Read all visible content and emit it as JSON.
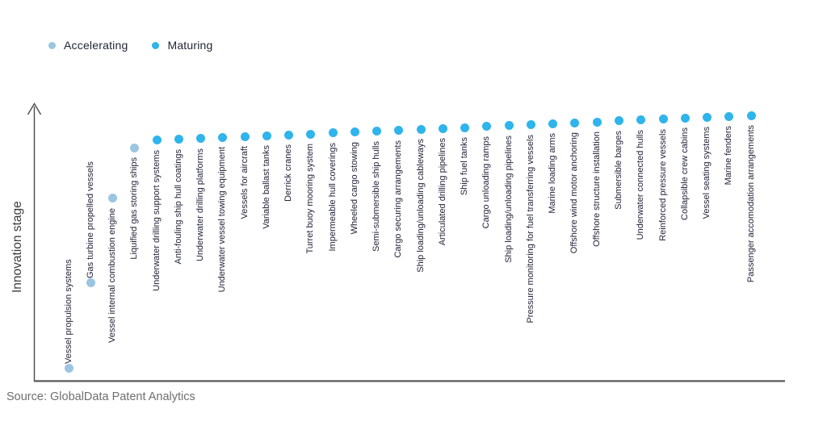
{
  "legend": {
    "items": [
      {
        "label": "Accelerating",
        "color": "#9CC5E1"
      },
      {
        "label": "Maturing",
        "color": "#2FB4EC"
      }
    ]
  },
  "axis": {
    "y_label": "Innovation stage"
  },
  "source": "Source: GlobalData Patent Analytics",
  "colors": {
    "accelerating": "#9CC5E1",
    "maturing": "#2FB4EC",
    "axis_line": "#4A4A4A",
    "baseline": "#5A5A5A",
    "label_text": "#23233A",
    "source_text": "#6F6F6F"
  },
  "chart_data": {
    "type": "scatter",
    "title": "",
    "xlabel": "",
    "ylabel": "Innovation stage",
    "ylim": [
      0,
      100
    ],
    "grid": false,
    "legend_position": "top-left",
    "series_names": [
      "Accelerating",
      "Maturing"
    ],
    "points": [
      {
        "label": "Vessel propulsion systems",
        "series": "Accelerating",
        "level": 4.7
      },
      {
        "label": "Gas turbine propelled vessels",
        "series": "Accelerating",
        "level": 35.6
      },
      {
        "label": "Vessel internal combustion engine",
        "series": "Accelerating",
        "level": 66.2
      },
      {
        "label": "Liquified gas storing ships",
        "series": "Accelerating",
        "level": 84.5
      },
      {
        "label": "Underwater drilling support systems",
        "series": "Maturing",
        "level": 87.2
      },
      {
        "label": "Anti-fouling ship hull coatings",
        "series": "Maturing",
        "level": 87.5
      },
      {
        "label": "Underwater drilling platforms",
        "series": "Maturing",
        "level": 87.8
      },
      {
        "label": "Underwater vessel towing equipment",
        "series": "Maturing",
        "level": 88.2
      },
      {
        "label": "Vessels for aircraft",
        "series": "Maturing",
        "level": 88.5
      },
      {
        "label": "Variable ballast tanks",
        "series": "Maturing",
        "level": 88.8
      },
      {
        "label": "Derrick cranes",
        "series": "Maturing",
        "level": 89.2
      },
      {
        "label": "Turret buoy mooring system",
        "series": "Maturing",
        "level": 89.5
      },
      {
        "label": "Impermeable hull coverings",
        "series": "Maturing",
        "level": 89.8
      },
      {
        "label": "Wheeled cargo stowing",
        "series": "Maturing",
        "level": 90.2
      },
      {
        "label": "Semi-submersible ship hulls",
        "series": "Maturing",
        "level": 90.5
      },
      {
        "label": "Cargo securing arrangements",
        "series": "Maturing",
        "level": 90.8
      },
      {
        "label": "Ship loading/unloading cableways",
        "series": "Maturing",
        "level": 91.2
      },
      {
        "label": "Articulated drilling pipelines",
        "series": "Maturing",
        "level": 91.5
      },
      {
        "label": "Ship fuel tanks",
        "series": "Maturing",
        "level": 91.8
      },
      {
        "label": "Cargo unloading ramps",
        "series": "Maturing",
        "level": 92.2
      },
      {
        "label": "Ship loading/unloading pipelines",
        "series": "Maturing",
        "level": 92.5
      },
      {
        "label": "Pressure monitoring for fuel transferring vessels",
        "series": "Maturing",
        "level": 92.8
      },
      {
        "label": "Marine loading arms",
        "series": "Maturing",
        "level": 93.2
      },
      {
        "label": "Offshore wind motor anchoring",
        "series": "Maturing",
        "level": 93.5
      },
      {
        "label": "Offshore structure installation",
        "series": "Maturing",
        "level": 93.8
      },
      {
        "label": "Submersible barges",
        "series": "Maturing",
        "level": 94.2
      },
      {
        "label": "Underwater connected hulls",
        "series": "Maturing",
        "level": 94.5
      },
      {
        "label": "Reinforced pressure vessels",
        "series": "Maturing",
        "level": 94.8
      },
      {
        "label": "Collapsible crew cabins",
        "series": "Maturing",
        "level": 95.2
      },
      {
        "label": "Vessel seating systems",
        "series": "Maturing",
        "level": 95.5
      },
      {
        "label": "Marine fenders",
        "series": "Maturing",
        "level": 95.8
      },
      {
        "label": "Passenger accomodation arrangements",
        "series": "Maturing",
        "level": 96.2
      }
    ]
  }
}
